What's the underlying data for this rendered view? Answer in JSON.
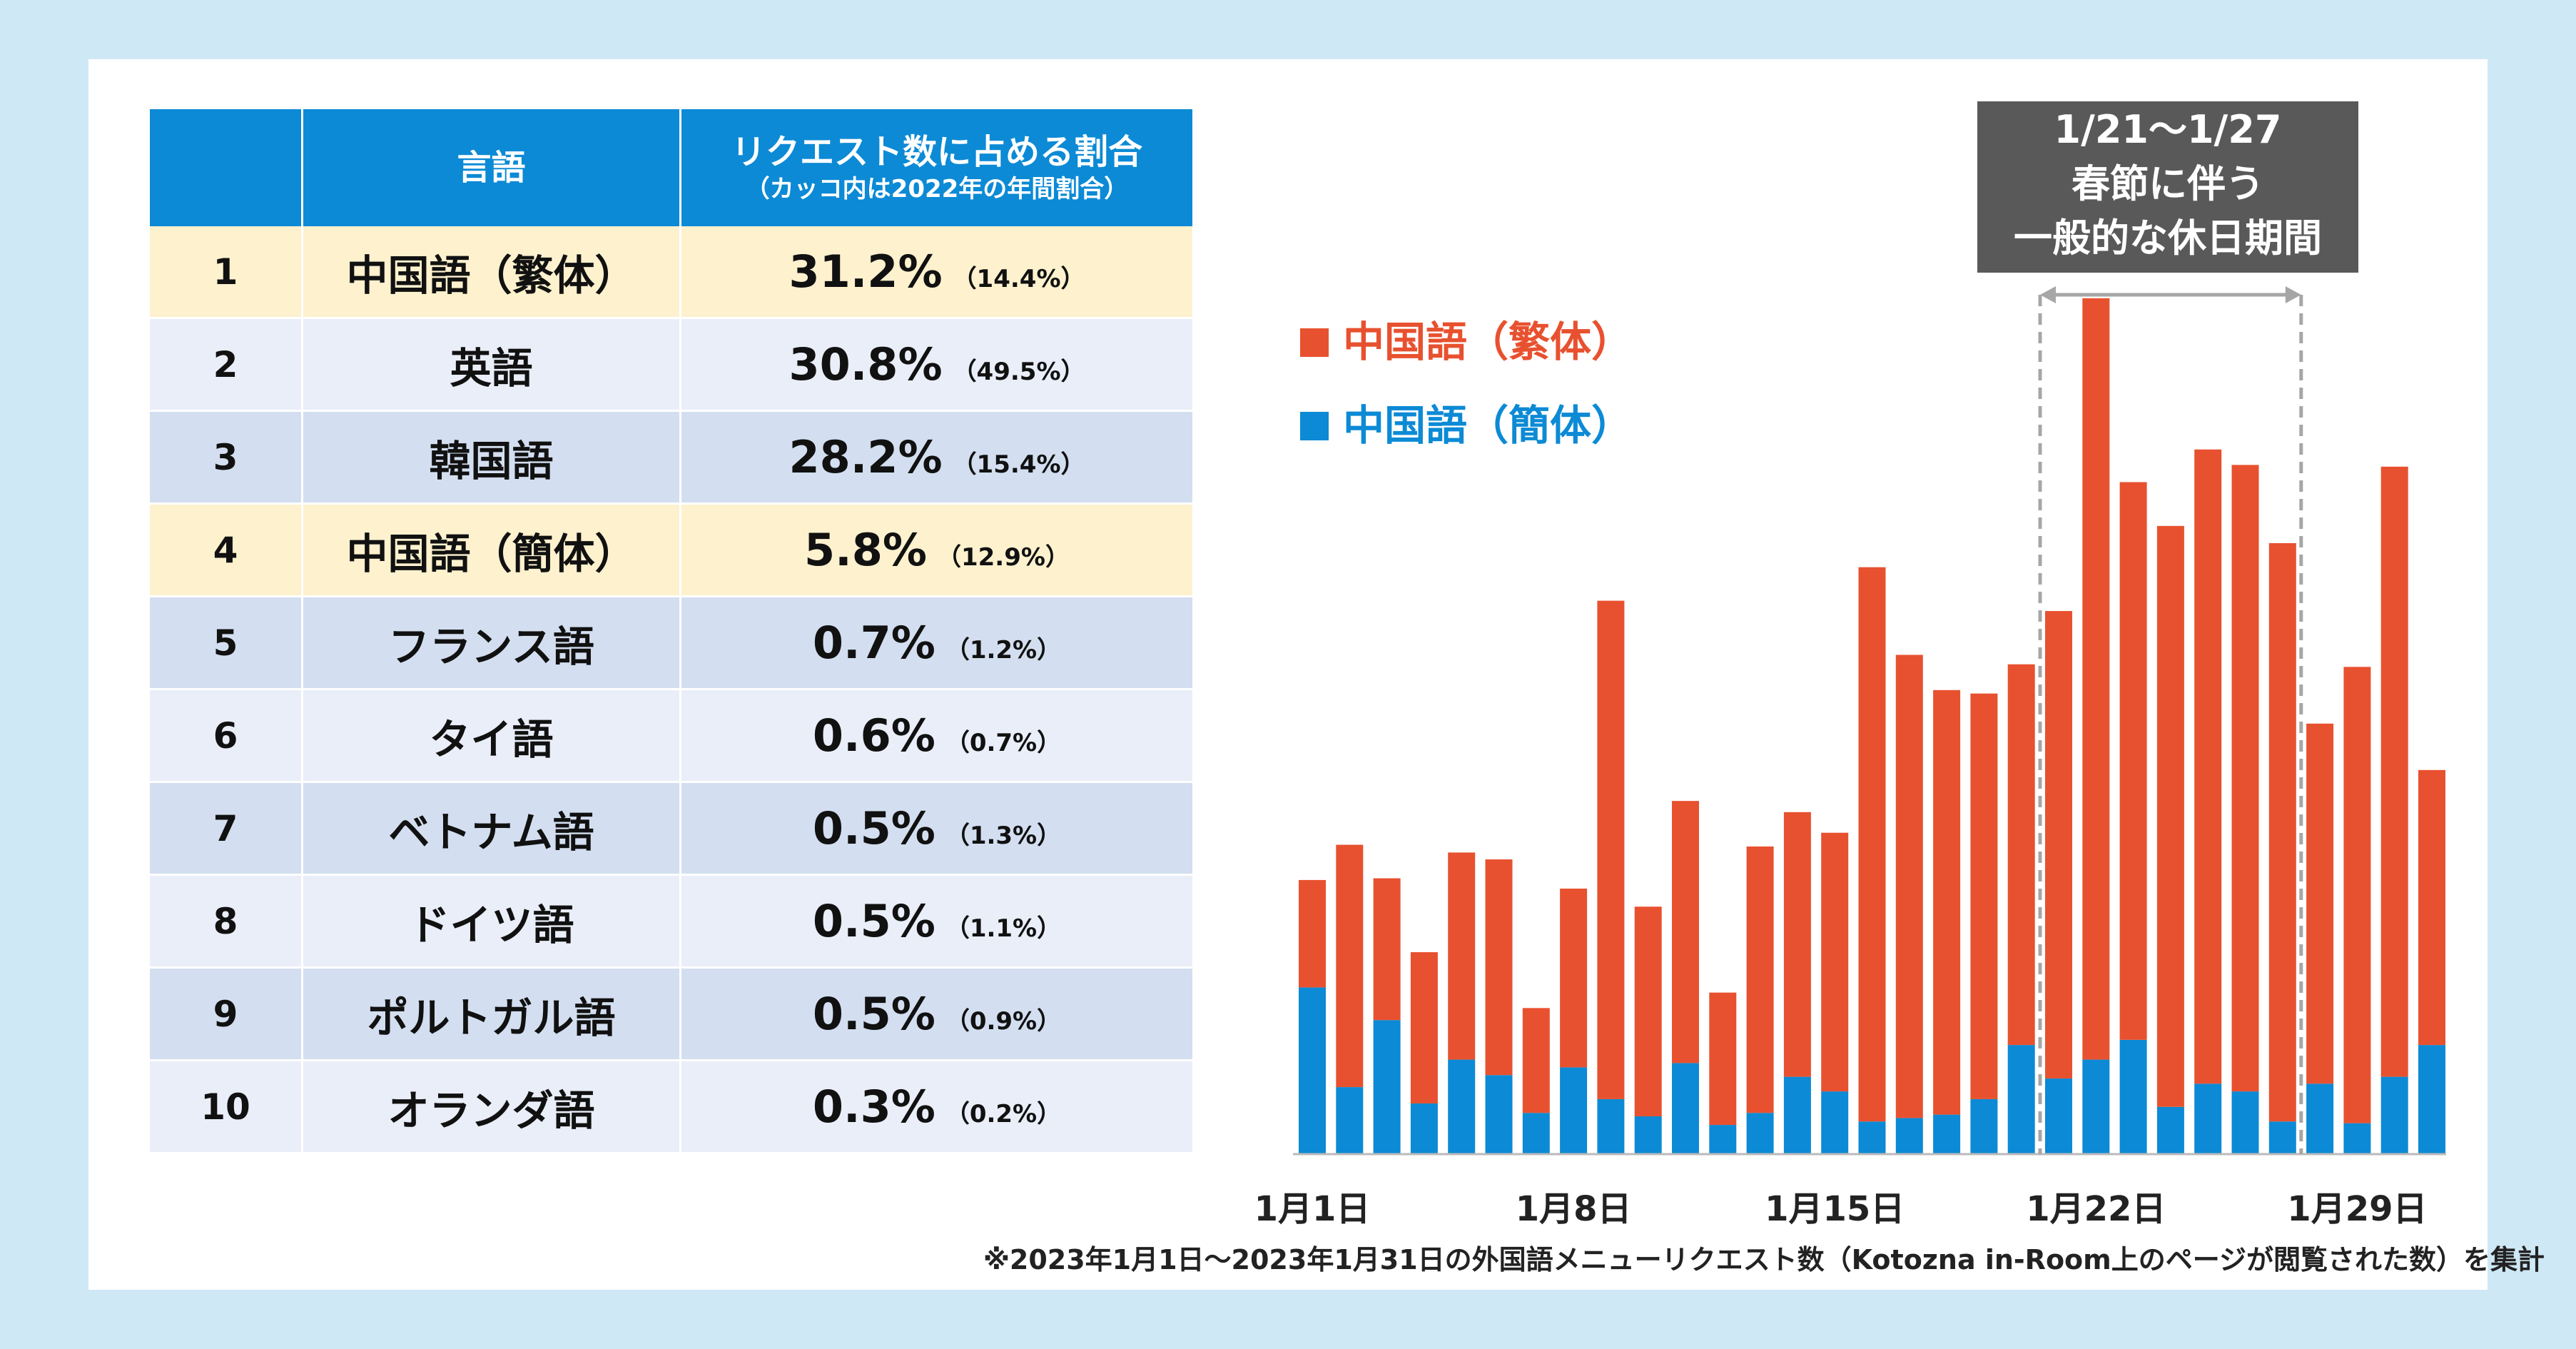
{
  "table": {
    "headers": {
      "rank": "",
      "language": "言語",
      "share": "リクエスト数に占める割合",
      "share_sub": "（カッコ内は2022年の年間割合）"
    },
    "rows": [
      {
        "rank": "1",
        "language": "中国語（繁体）",
        "share": "31.2%",
        "share_2022": "（14.4%）"
      },
      {
        "rank": "2",
        "language": "英語",
        "share": "30.8%",
        "share_2022": "（49.5%）"
      },
      {
        "rank": "3",
        "language": "韓国語",
        "share": "28.2%",
        "share_2022": "（15.4%）"
      },
      {
        "rank": "4",
        "language": "中国語（簡体）",
        "share": "5.8%",
        "share_2022": "（12.9%）"
      },
      {
        "rank": "5",
        "language": "フランス語",
        "share": "0.7%",
        "share_2022": "（1.2%）"
      },
      {
        "rank": "6",
        "language": "タイ語",
        "share": "0.6%",
        "share_2022": "（0.7%）"
      },
      {
        "rank": "7",
        "language": "ベトナム語",
        "share": "0.5%",
        "share_2022": "（1.3%）"
      },
      {
        "rank": "8",
        "language": "ドイツ語",
        "share": "0.5%",
        "share_2022": "（1.1%）"
      },
      {
        "rank": "9",
        "language": "ポルトガル語",
        "share": "0.5%",
        "share_2022": "（0.9%）"
      },
      {
        "rank": "10",
        "language": "オランダ語",
        "share": "0.3%",
        "share_2022": "（0.2%）"
      }
    ]
  },
  "chart_data": {
    "type": "bar",
    "stacked": true,
    "title": "",
    "xlabel": "",
    "ylabel": "",
    "ylim": [
      0,
      100
    ],
    "categories": [
      "1",
      "2",
      "3",
      "4",
      "5",
      "6",
      "7",
      "8",
      "9",
      "10",
      "11",
      "12",
      "13",
      "14",
      "15",
      "16",
      "17",
      "18",
      "19",
      "20",
      "21",
      "22",
      "23",
      "24",
      "25",
      "26",
      "27",
      "28",
      "29",
      "30",
      "31"
    ],
    "x_tick_labels": [
      {
        "day_index": 0,
        "label": "1月1日"
      },
      {
        "day_index": 7,
        "label": "1月8日"
      },
      {
        "day_index": 14,
        "label": "1月15日"
      },
      {
        "day_index": 21,
        "label": "1月22日"
      },
      {
        "day_index": 28,
        "label": "1月29日"
      }
    ],
    "series": [
      {
        "name": "中国語（簡体）",
        "color": "#0c8ad5",
        "values": [
          19.4,
          7.8,
          15.6,
          5.9,
          11.0,
          9.2,
          4.8,
          10.1,
          6.4,
          4.4,
          10.6,
          3.4,
          4.8,
          9.0,
          7.3,
          3.8,
          4.2,
          4.6,
          6.4,
          12.7,
          8.8,
          11.0,
          13.3,
          5.5,
          8.2,
          7.3,
          3.8,
          8.2,
          3.6,
          9.0,
          12.7
        ]
      },
      {
        "name": "中国語（繁体）",
        "color": "#e8512f",
        "values": [
          12.5,
          28.2,
          16.5,
          17.6,
          24.1,
          25.1,
          12.2,
          20.8,
          58.0,
          24.4,
          30.5,
          15.4,
          31.0,
          30.8,
          30.1,
          64.5,
          53.9,
          49.4,
          47.2,
          44.3,
          54.4,
          88.6,
          64.9,
          67.6,
          73.8,
          72.9,
          67.3,
          41.9,
          53.1,
          71.0,
          32.0
        ]
      }
    ],
    "legend_position": "top-left",
    "annotation": {
      "lines": [
        "1/21〜1/27",
        "春節に伴う",
        "一般的な休日期間"
      ],
      "start_day": 21,
      "end_day": 27
    }
  },
  "footnote": "※2023年1月1日〜2023年1月31日の外国語メニューリクエスト数（Kotozna in-Room上のページが閲覧された数）を集計"
}
